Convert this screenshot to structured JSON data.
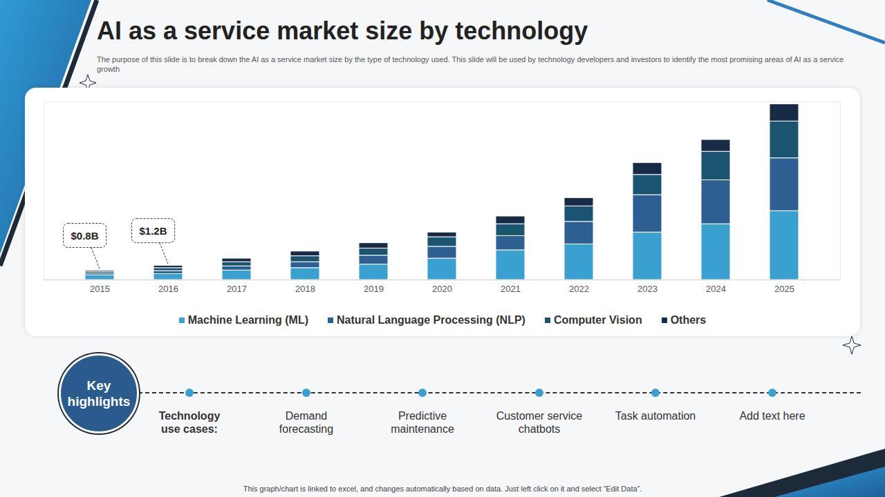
{
  "chart_data": {
    "type": "bar",
    "title": "AI as a service market size by technology",
    "subtitle": "The purpose of this slide is to break down the AI as a service market size by the type of technology used. This slide will be used by technology developers and investors to identify the most promising areas of AI as a service growth",
    "categories": [
      "2015",
      "2016",
      "2017",
      "2018",
      "2019",
      "2020",
      "2021",
      "2022",
      "2023",
      "2024",
      "2025"
    ],
    "series": [
      {
        "name": "Machine Learning (ML)",
        "color": "#3aa0d0",
        "values": [
          0.4,
          0.5,
          0.8,
          1.0,
          1.3,
          1.8,
          2.5,
          3.0,
          4.0,
          4.7,
          5.8
        ]
      },
      {
        "name": "Natural Language Processing (NLP)",
        "color": "#2e5f93",
        "values": [
          0.15,
          0.25,
          0.35,
          0.5,
          0.75,
          1.0,
          1.2,
          1.9,
          3.15,
          3.7,
          4.45
        ]
      },
      {
        "name": "Computer Vision",
        "color": "#1a5470",
        "values": [
          0.15,
          0.25,
          0.35,
          0.5,
          0.6,
          0.8,
          1.0,
          1.3,
          1.7,
          2.4,
          3.1
        ]
      },
      {
        "name": "Others",
        "color": "#172b47",
        "values": [
          0.1,
          0.2,
          0.3,
          0.4,
          0.45,
          0.4,
          0.65,
          0.7,
          1.0,
          1.0,
          1.45
        ]
      }
    ],
    "annotations": [
      {
        "category": "2015",
        "value": 0.8,
        "label": "$0.8B"
      },
      {
        "category": "2016",
        "value": 1.2,
        "label": "$1.2B"
      }
    ],
    "ylim": [
      0,
      15
    ],
    "stacked": true,
    "tick_labels": "x",
    "legend": "bottom"
  },
  "key_highlights": {
    "title": "Key highlights",
    "label": "Technology use cases:",
    "items": [
      "Demand forecasting",
      "Predictive maintenance",
      "Customer service chatbots",
      "Task automation",
      "Add text here"
    ]
  },
  "footnote": "This graph/chart  is linked to excel, and changes automatically based on data. Just left click on it and select “Edit Data”."
}
